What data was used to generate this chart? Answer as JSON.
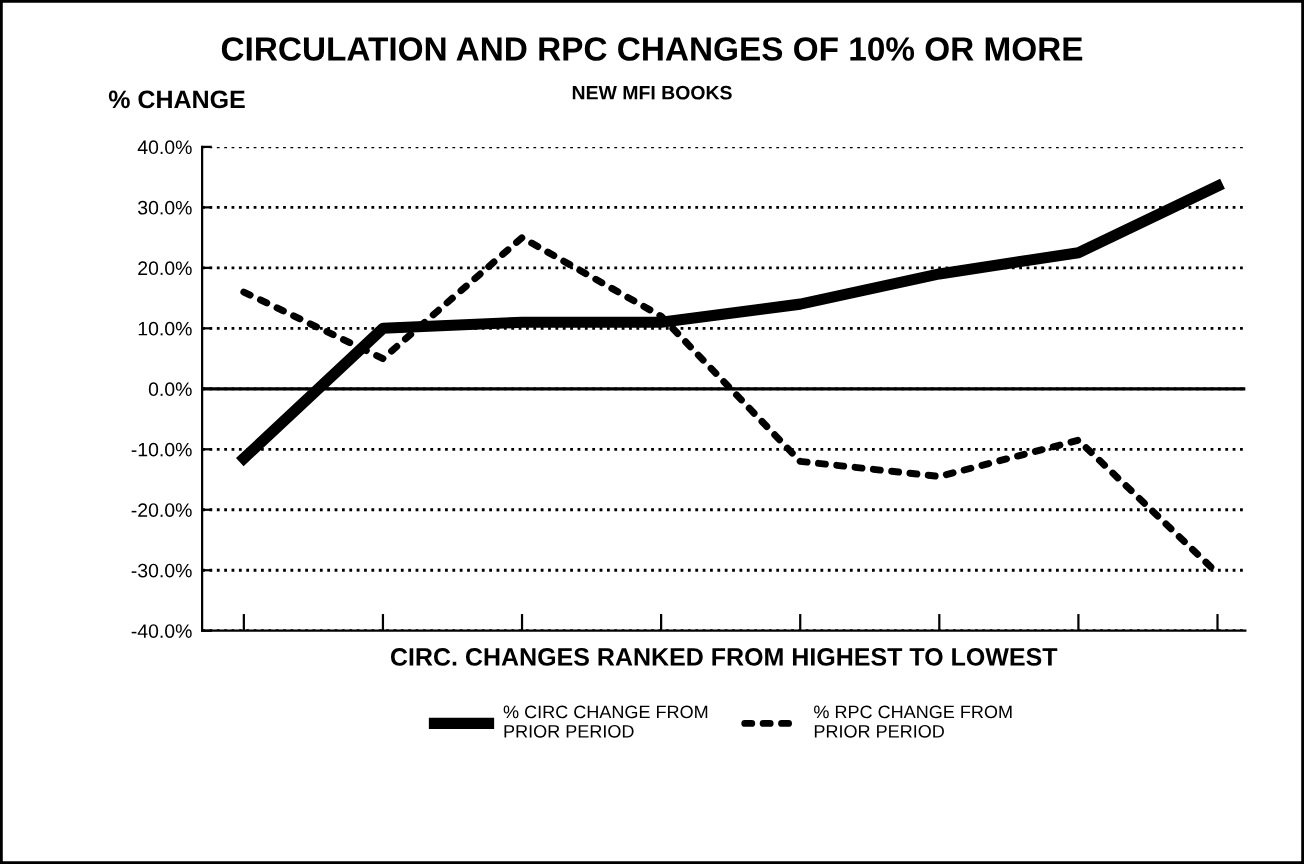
{
  "chart_data": {
    "type": "line",
    "title": "CIRCULATION AND RPC CHANGES OF 10% OR MORE",
    "subtitle": "NEW MFI BOOKS",
    "ylabel": "% CHANGE",
    "xlabel": "CIRC. CHANGES RANKED FROM HIGHEST TO LOWEST",
    "categories": [
      null,
      null,
      null,
      null,
      null,
      null,
      null,
      null
    ],
    "series": [
      {
        "name": "% CIRC CHANGE FROM PRIOR PERIOD",
        "color": "#000000",
        "line_style": "solid",
        "values": [
          -11.5,
          10,
          11,
          11,
          14,
          19,
          22.5,
          33.5
        ]
      },
      {
        "name": "% RPC CHANGE FROM PRIOR PERIOD",
        "color": "#000000",
        "line_style": "dotted",
        "values": [
          16,
          5,
          25,
          12,
          -12,
          -14.5,
          -8.5,
          -30.5
        ]
      }
    ],
    "ylim": [
      -40,
      40
    ],
    "yticks": [
      {
        "value": -40,
        "label": "-40.0%"
      },
      {
        "value": -30,
        "label": "-30.0%"
      },
      {
        "value": -20,
        "label": "-20.0%"
      },
      {
        "value": -10,
        "label": "-10.0%"
      },
      {
        "value": 0,
        "label": "0.0%"
      },
      {
        "value": 10,
        "label": "10.0%"
      },
      {
        "value": 20,
        "label": "20.0%"
      },
      {
        "value": 30,
        "label": "30.0%"
      },
      {
        "value": 40,
        "label": "40.0%"
      }
    ],
    "ref_lines": [
      {
        "axis": "y",
        "value": 0,
        "color": "#000000",
        "line_style": "solid"
      }
    ],
    "grid": "y",
    "legend": "bottom",
    "tick_labels": "y",
    "marker": "none"
  }
}
